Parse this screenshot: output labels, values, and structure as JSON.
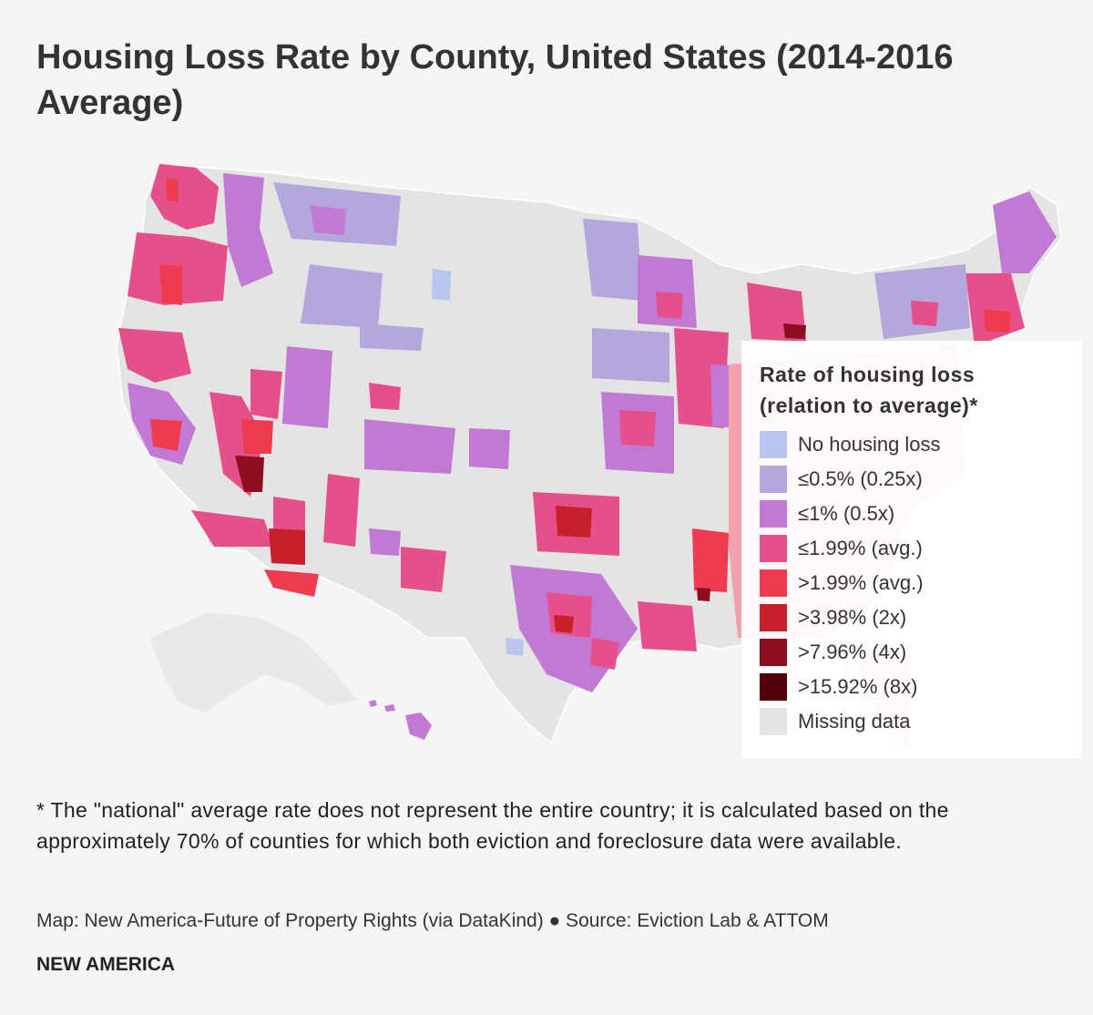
{
  "title": "Housing Loss Rate by County, United States (2014-2016 Average)",
  "legend": {
    "title_line1": "Rate of housing loss",
    "title_line2": "(relation to average)*",
    "items": [
      {
        "label": "No housing loss",
        "color": "#b9c6ef"
      },
      {
        "label": "≤0.5% (0.25x)",
        "color": "#b5a6de"
      },
      {
        "label": "≤1% (0.5x)",
        "color": "#c279d3"
      },
      {
        "label": "≤1.99% (avg.)",
        "color": "#e5508a"
      },
      {
        "label": ">1.99% (avg.)",
        "color": "#ef3b4e"
      },
      {
        "label": ">3.98% (2x)",
        "color": "#c81f2a"
      },
      {
        "label": ">7.96% (4x)",
        "color": "#8e0d1e"
      },
      {
        "label": ">15.92% (8x)",
        "color": "#540008"
      },
      {
        "label": "Missing data",
        "color": "#e4e4e4"
      }
    ]
  },
  "footnote": "* The \"national\" average rate does not represent the entire country; it is calculated based on the approximately 70% of counties for which both eviction and foreclosure data were available.",
  "source": "Map: New America-Future of Property Rights (via DataKind) ● Source: Eviction Lab & ATTOM",
  "brand": "NEW AMERICA"
}
